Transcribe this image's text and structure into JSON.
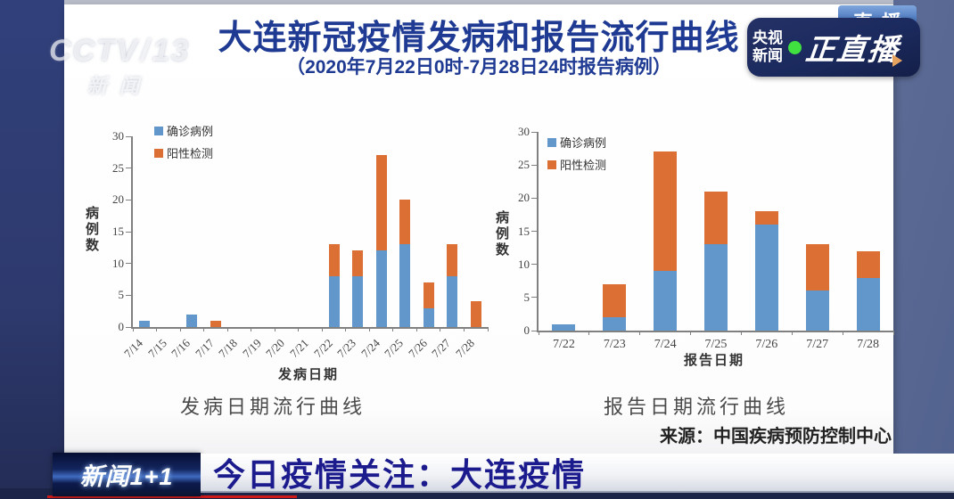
{
  "channel_logo": {
    "name": "CCTV",
    "number": "13",
    "caption": "新闻"
  },
  "live_badge": {
    "channel_line1": "央视",
    "channel_line2": "新闻",
    "live_text": "正直播",
    "tag_behind": "直播",
    "dot_color": "#3fe03f",
    "badge_bg": "#1b2a5e"
  },
  "panel": {
    "title": "大连新冠疫情发病和报告流行曲线",
    "subtitle": "（2020年7月22日0时-7月28日24时报告病例）",
    "source": "来源：中国疾病预防控制中心"
  },
  "chart_data": [
    {
      "type": "bar",
      "stacked": true,
      "title": "发病日期流行曲线",
      "xlabel": "发病日期",
      "ylabel": "病例数",
      "ylim": [
        0,
        30
      ],
      "yticks": [
        0,
        5,
        10,
        15,
        20,
        25,
        30
      ],
      "grid": false,
      "legend_position": "top-left-inside",
      "x_tick_rotation": -45,
      "categories": [
        "7/14",
        "7/15",
        "7/16",
        "7/17",
        "7/18",
        "7/19",
        "7/20",
        "7/21",
        "7/22",
        "7/23",
        "7/24",
        "7/25",
        "7/26",
        "7/27",
        "7/28"
      ],
      "series": [
        {
          "name": "确诊病例",
          "color": "#6197cb",
          "values": [
            1,
            0,
            2,
            0,
            0,
            0,
            0,
            0,
            8,
            8,
            12,
            13,
            3,
            8,
            0
          ]
        },
        {
          "name": "阳性检测",
          "color": "#dc7034",
          "values": [
            0,
            0,
            0,
            1,
            0,
            0,
            0,
            0,
            5,
            4,
            15,
            7,
            4,
            5,
            4
          ]
        }
      ]
    },
    {
      "type": "bar",
      "stacked": true,
      "title": "报告日期流行曲线",
      "xlabel": "报告日期",
      "ylabel": "病例数",
      "ylim": [
        0,
        30
      ],
      "yticks": [
        0,
        5,
        10,
        15,
        20,
        25,
        30
      ],
      "grid": false,
      "legend_position": "top-left-inside",
      "x_tick_rotation": 0,
      "categories": [
        "7/22",
        "7/23",
        "7/24",
        "7/25",
        "7/26",
        "7/27",
        "7/28"
      ],
      "series": [
        {
          "name": "确诊病例",
          "color": "#6197cb",
          "values": [
            1,
            2,
            9,
            13,
            16,
            6,
            8
          ]
        },
        {
          "name": "阳性检测",
          "color": "#dc7034",
          "values": [
            0,
            5,
            18,
            8,
            2,
            7,
            4
          ]
        }
      ]
    }
  ],
  "banner": {
    "program_logo": "新闻1+1",
    "headline": "今日疫情关注：大连疫情"
  }
}
